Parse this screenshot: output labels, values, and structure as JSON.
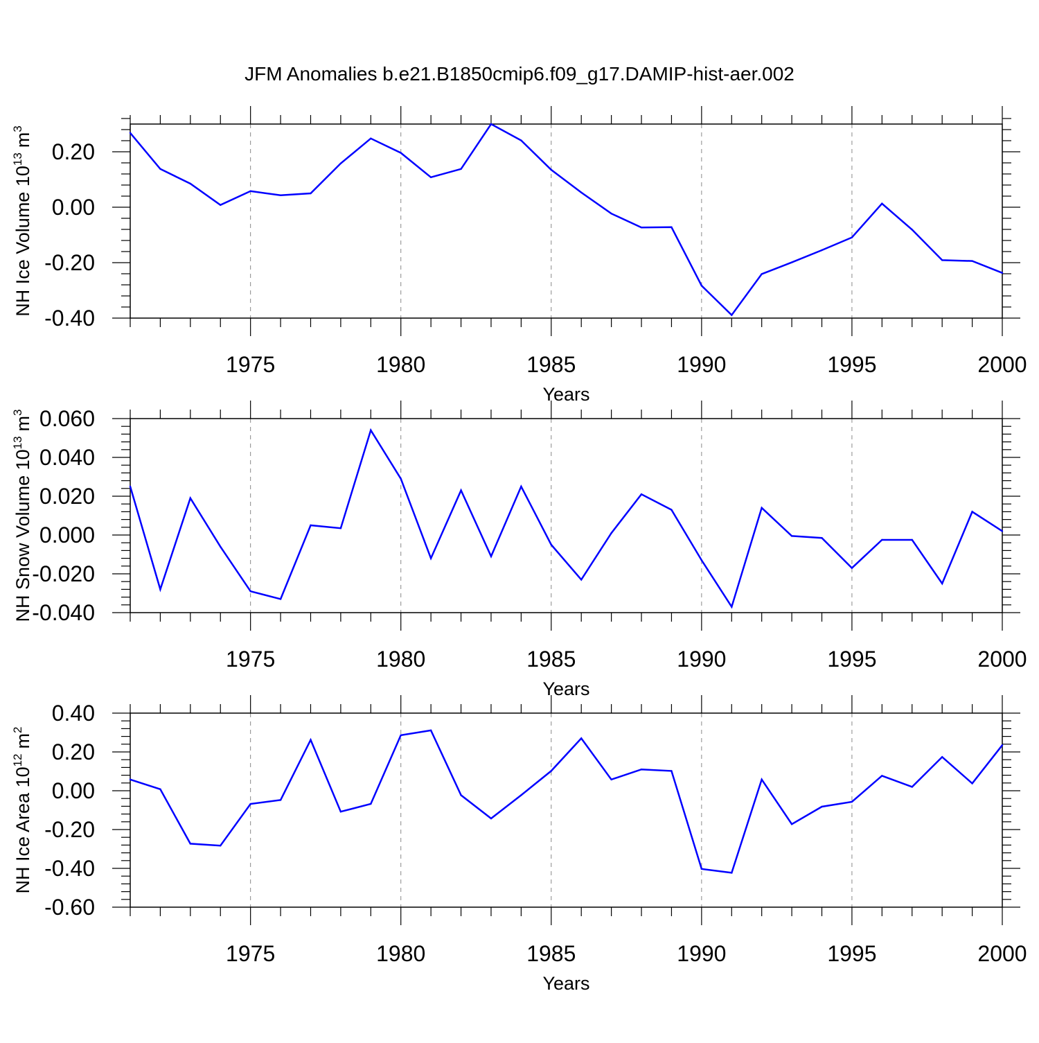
{
  "title": "JFM Anomalies b.e21.B1850cmip6.f09_g17.DAMIP-hist-aer.002",
  "colors": {
    "line": "#0000ff",
    "axis": "#000000",
    "grid": "#888888"
  },
  "chart_data": [
    {
      "type": "line",
      "ylabel_main": "NH Ice Volume 10",
      "ylabel_exp": "13",
      "ylabel_unit": "m",
      "ylabel_unit_exp": "3",
      "xlabel": "Years",
      "xlim": [
        1971,
        2000
      ],
      "ylim": [
        -0.4,
        0.3
      ],
      "yticks": [
        -0.4,
        -0.2,
        0.0,
        0.2
      ],
      "ytick_labels": [
        "-0.40",
        "-0.20",
        "0.00",
        "0.20"
      ],
      "yminor_step": 0.04,
      "xticks": [
        1975,
        1980,
        1985,
        1990,
        1995,
        2000
      ],
      "xtick_labels": [
        "1975",
        "1980",
        "1985",
        "1990",
        "1995",
        "2000"
      ],
      "x": [
        1971,
        1972,
        1973,
        1974,
        1975,
        1976,
        1977,
        1978,
        1979,
        1980,
        1981,
        1982,
        1983,
        1984,
        1985,
        1986,
        1987,
        1988,
        1989,
        1990,
        1991,
        1992,
        1993,
        1994,
        1995,
        1996,
        1997,
        1998,
        1999,
        2000
      ],
      "y": [
        0.268,
        0.138,
        0.085,
        0.008,
        0.058,
        0.043,
        0.05,
        0.158,
        0.248,
        0.196,
        0.108,
        0.138,
        0.3,
        0.241,
        0.135,
        0.053,
        -0.023,
        -0.073,
        -0.072,
        -0.283,
        -0.389,
        -0.241,
        -0.199,
        -0.155,
        -0.109,
        0.013,
        -0.081,
        -0.191,
        -0.194,
        -0.237
      ]
    },
    {
      "type": "line",
      "ylabel_main": "NH Snow Volume 10",
      "ylabel_exp": "13",
      "ylabel_unit": "m",
      "ylabel_unit_exp": "3",
      "xlabel": "Years",
      "xlim": [
        1971,
        2000
      ],
      "ylim": [
        -0.04,
        0.06
      ],
      "yticks": [
        -0.04,
        -0.02,
        0.0,
        0.02,
        0.04,
        0.06
      ],
      "ytick_labels": [
        "-0.040",
        "-0.020",
        "0.000",
        "0.020",
        "0.040",
        "0.060"
      ],
      "yminor_step": 0.004,
      "xticks": [
        1975,
        1980,
        1985,
        1990,
        1995,
        2000
      ],
      "xtick_labels": [
        "1975",
        "1980",
        "1985",
        "1990",
        "1995",
        "2000"
      ],
      "x": [
        1971,
        1972,
        1973,
        1974,
        1975,
        1976,
        1977,
        1978,
        1979,
        1980,
        1981,
        1982,
        1983,
        1984,
        1985,
        1986,
        1987,
        1988,
        1989,
        1990,
        1991,
        1992,
        1993,
        1994,
        1995,
        1996,
        1997,
        1998,
        1999,
        2000
      ],
      "y": [
        0.025,
        -0.028,
        0.019,
        -0.006,
        -0.029,
        -0.033,
        0.005,
        0.0035,
        0.054,
        0.029,
        -0.012,
        0.023,
        -0.011,
        0.025,
        -0.005,
        -0.023,
        0.001,
        0.021,
        0.013,
        -0.013,
        -0.037,
        0.014,
        -0.0005,
        -0.0015,
        -0.017,
        -0.0025,
        -0.0025,
        -0.025,
        0.012,
        0.002
      ]
    },
    {
      "type": "line",
      "ylabel_main": "NH Ice Area 10",
      "ylabel_exp": "12",
      "ylabel_unit": "m",
      "ylabel_unit_exp": "2",
      "xlabel": "Years",
      "xlim": [
        1971,
        2000
      ],
      "ylim": [
        -0.6,
        0.4
      ],
      "yticks": [
        -0.6,
        -0.4,
        -0.2,
        0.0,
        0.2,
        0.4
      ],
      "ytick_labels": [
        "-0.60",
        "-0.40",
        "-0.20",
        "0.00",
        "0.20",
        "0.40"
      ],
      "yminor_step": 0.04,
      "xticks": [
        1975,
        1980,
        1985,
        1990,
        1995,
        2000
      ],
      "xtick_labels": [
        "1975",
        "1980",
        "1985",
        "1990",
        "1995",
        "2000"
      ],
      "x": [
        1971,
        1972,
        1973,
        1974,
        1975,
        1976,
        1977,
        1978,
        1979,
        1980,
        1981,
        1982,
        1983,
        1984,
        1985,
        1986,
        1987,
        1988,
        1989,
        1990,
        1991,
        1992,
        1993,
        1994,
        1995,
        1996,
        1997,
        1998,
        1999,
        2000
      ],
      "y": [
        0.058,
        0.008,
        -0.273,
        -0.283,
        -0.068,
        -0.048,
        0.262,
        -0.108,
        -0.068,
        0.286,
        0.311,
        -0.023,
        -0.143,
        -0.023,
        0.102,
        0.27,
        0.058,
        0.11,
        0.102,
        -0.403,
        -0.423,
        0.058,
        -0.172,
        -0.082,
        -0.057,
        0.077,
        0.02,
        0.174,
        0.038,
        0.235
      ]
    }
  ]
}
